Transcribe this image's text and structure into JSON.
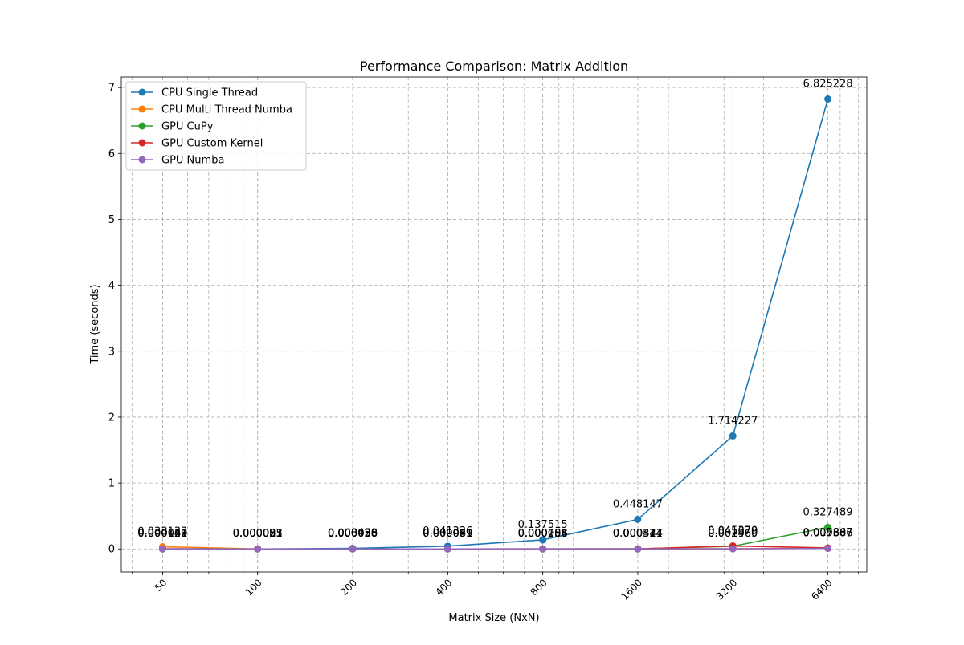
{
  "chart_data": {
    "type": "line",
    "title": "Performance Comparison: Matrix Addition",
    "xlabel": "Matrix Size (NxN)",
    "ylabel": "Time (seconds)",
    "x_scale": "log2",
    "xlim": [
      37,
      8500
    ],
    "ylim": [
      -0.35,
      7.16
    ],
    "x": [
      50,
      100,
      200,
      400,
      800,
      1600,
      3200,
      6400
    ],
    "x_tick_labels": [
      "50",
      "100",
      "200",
      "400",
      "800",
      "1600",
      "3200",
      "6400"
    ],
    "y_ticks": [
      0,
      1,
      2,
      3,
      4,
      5,
      6,
      7
    ],
    "y_tick_labels": [
      "0",
      "1",
      "2",
      "3",
      "4",
      "5",
      "6",
      "7"
    ],
    "grid": true,
    "legend_position": "top-left",
    "series": [
      {
        "name": "CPU Single Thread",
        "color": "#1f77b4",
        "values": [
          4.9e-05,
          9.3e-05,
          0.008458,
          0.041336,
          0.137515,
          0.448147,
          1.714227,
          6.825228
        ],
        "labels": [
          "0.000049",
          "0.000093",
          "0.008458",
          "0.041336",
          "0.137515",
          "0.448147",
          "1.714227",
          "6.825228"
        ]
      },
      {
        "name": "CPU Multi Thread Numba",
        "color": "#ff7f0e",
        "values": [
          0.033133,
          8.7e-05,
          3.6e-05,
          6.9e-05,
          0.000158,
          0.000541,
          0.002469,
          0.009386
        ],
        "labels": [
          "0.033133",
          "0.000087",
          "0.000036",
          "0.000069",
          "0.000158",
          "0.000541",
          "0.002469",
          "0.009386"
        ]
      },
      {
        "name": "GPU CuPy",
        "color": "#2ca02c",
        "values": [
          0.000162,
          2.1e-05,
          2.6e-05,
          3.9e-05,
          8.4e-05,
          0.000327,
          0.041079,
          0.327489
        ],
        "labels": [
          "0.000162",
          "0.000021",
          "0.000026",
          "0.000039",
          "0.000084",
          "0.000327",
          "0.041079",
          "0.327489"
        ]
      },
      {
        "name": "GPU Custom Kernel",
        "color": "#d62728",
        "values": [
          0.000141,
          2.5e-05,
          3e-05,
          4.1e-05,
          9.6e-05,
          0.000314,
          0.04537,
          0.015867
        ],
        "labels": [
          "0.000141",
          "0.000025",
          "0.000030",
          "0.000041",
          "0.000096",
          "0.000314",
          "0.045370",
          "0.015867"
        ]
      },
      {
        "name": "GPU Numba",
        "color": "#9467bd",
        "values": [
          0.000123,
          5.7e-05,
          5.8e-05,
          8.1e-05,
          0.000204,
          0.000474,
          0.00196,
          0.007607
        ],
        "labels": [
          "0.000123",
          "0.000057",
          "0.000058",
          "0.000081",
          "0.000204",
          "0.000474",
          "0.001960",
          "0.007607"
        ]
      }
    ]
  }
}
